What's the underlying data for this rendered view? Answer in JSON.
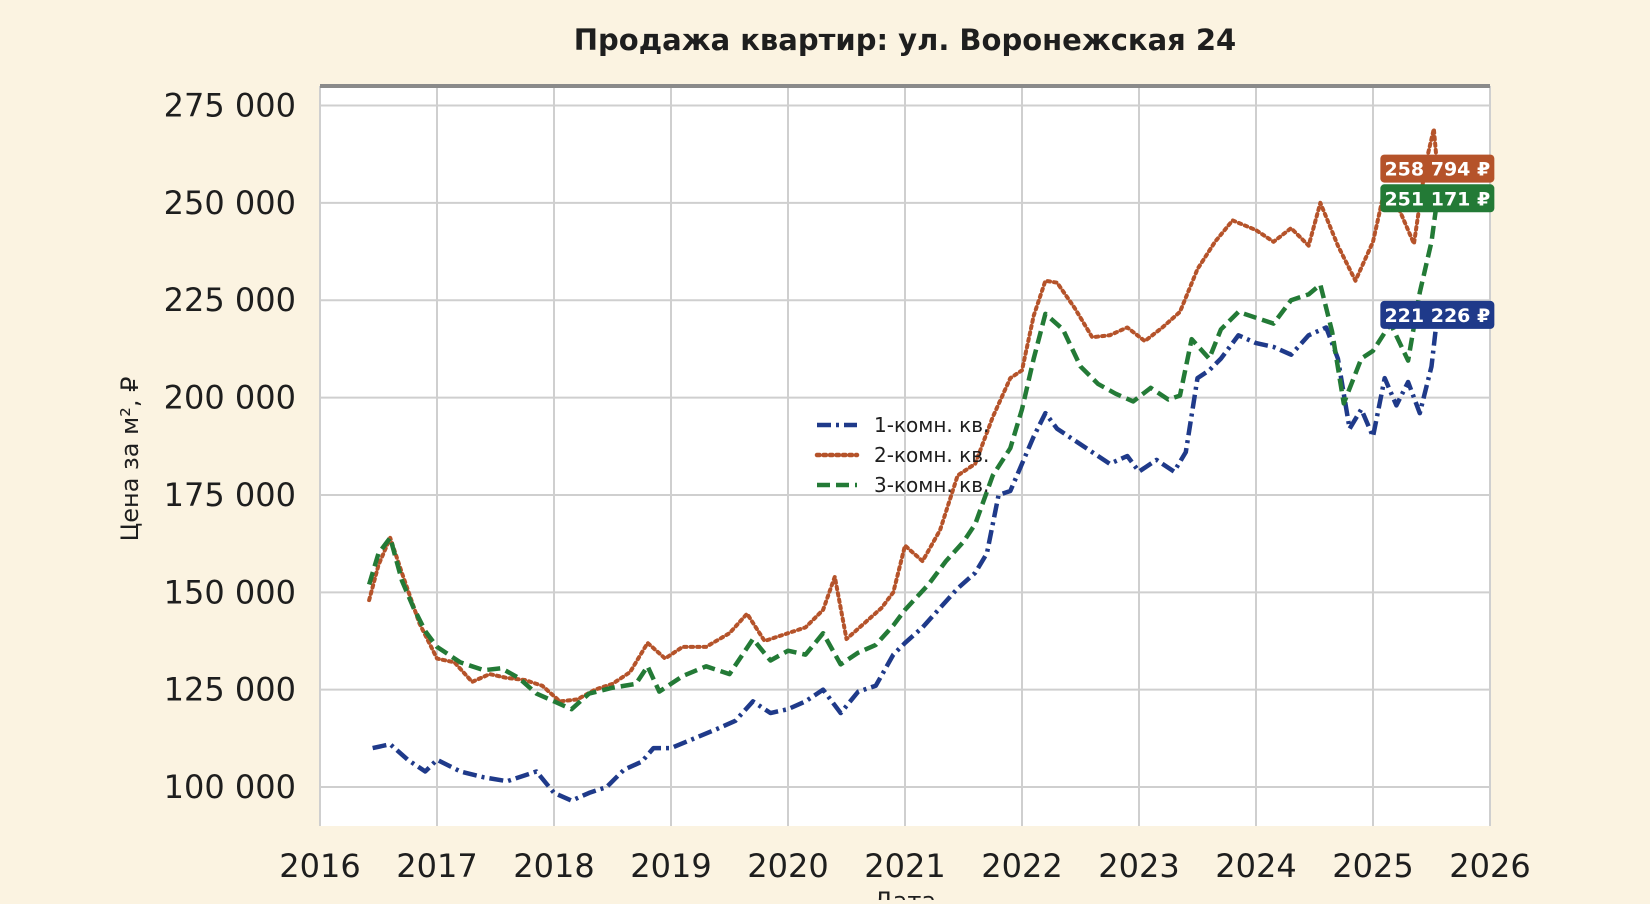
{
  "chart_data": {
    "type": "line",
    "title": "Продажа квартир: ул. Воронежская 24",
    "xlabel": "Дата",
    "ylabel": "Цена за м², ₽",
    "xlim": [
      2016,
      2026
    ],
    "ylim": [
      90000,
      280000
    ],
    "x_ticks": [
      2016,
      2017,
      2018,
      2019,
      2020,
      2021,
      2022,
      2023,
      2024,
      2025,
      2026
    ],
    "x_tick_labels": [
      "2016",
      "2017",
      "2018",
      "2019",
      "2020",
      "2021",
      "2022",
      "2023",
      "2024",
      "2025",
      "2026"
    ],
    "y_ticks": [
      100000,
      125000,
      150000,
      175000,
      200000,
      225000,
      250000,
      275000
    ],
    "y_tick_labels": [
      "100 000",
      "125 000",
      "150 000",
      "175 000",
      "200 000",
      "225 000",
      "250 000",
      "275 000"
    ],
    "grid": true,
    "legend_position": "center",
    "series": [
      {
        "name": "1-комн. кв.",
        "color": "#1f3a8a",
        "dash": "dashdot",
        "end_label": "221 226 ₽",
        "points": [
          [
            2016.45,
            110000
          ],
          [
            2016.6,
            111000
          ],
          [
            2016.75,
            107000
          ],
          [
            2016.9,
            104000
          ],
          [
            2017.0,
            107000
          ],
          [
            2017.2,
            104000
          ],
          [
            2017.4,
            102500
          ],
          [
            2017.6,
            101500
          ],
          [
            2017.85,
            104000
          ],
          [
            2018.0,
            98500
          ],
          [
            2018.15,
            96500
          ],
          [
            2018.3,
            98500
          ],
          [
            2018.45,
            100000
          ],
          [
            2018.6,
            104500
          ],
          [
            2018.75,
            106500
          ],
          [
            2018.85,
            110000
          ],
          [
            2019.0,
            110000
          ],
          [
            2019.2,
            112500
          ],
          [
            2019.4,
            115000
          ],
          [
            2019.55,
            117000
          ],
          [
            2019.7,
            122000
          ],
          [
            2019.85,
            119000
          ],
          [
            2020.0,
            120000
          ],
          [
            2020.15,
            122000
          ],
          [
            2020.3,
            125000
          ],
          [
            2020.45,
            119000
          ],
          [
            2020.6,
            124500
          ],
          [
            2020.75,
            126000
          ],
          [
            2020.9,
            134000
          ],
          [
            2021.0,
            137000
          ],
          [
            2021.15,
            141000
          ],
          [
            2021.3,
            146000
          ],
          [
            2021.45,
            151000
          ],
          [
            2021.6,
            155000
          ],
          [
            2021.7,
            160000
          ],
          [
            2021.8,
            175000
          ],
          [
            2021.9,
            176000
          ],
          [
            2022.0,
            183000
          ],
          [
            2022.1,
            190000
          ],
          [
            2022.2,
            196000
          ],
          [
            2022.3,
            192000
          ],
          [
            2022.45,
            189000
          ],
          [
            2022.6,
            186000
          ],
          [
            2022.75,
            183000
          ],
          [
            2022.9,
            185000
          ],
          [
            2023.0,
            181000
          ],
          [
            2023.15,
            184000
          ],
          [
            2023.3,
            181000
          ],
          [
            2023.4,
            186000
          ],
          [
            2023.5,
            205000
          ],
          [
            2023.6,
            207000
          ],
          [
            2023.7,
            210000
          ],
          [
            2023.85,
            216000
          ],
          [
            2024.0,
            214000
          ],
          [
            2024.15,
            213000
          ],
          [
            2024.3,
            211000
          ],
          [
            2024.45,
            216000
          ],
          [
            2024.6,
            218000
          ],
          [
            2024.7,
            210000
          ],
          [
            2024.8,
            192000
          ],
          [
            2024.9,
            197000
          ],
          [
            2025.0,
            190000
          ],
          [
            2025.1,
            205000
          ],
          [
            2025.2,
            198000
          ],
          [
            2025.3,
            204000
          ],
          [
            2025.4,
            196000
          ],
          [
            2025.5,
            208000
          ],
          [
            2025.55,
            221226
          ]
        ]
      },
      {
        "name": "2-комн. кв.",
        "color": "#b5532a",
        "dash": "dotted",
        "end_label": "258 794 ₽",
        "points": [
          [
            2016.42,
            148000
          ],
          [
            2016.5,
            157000
          ],
          [
            2016.6,
            164000
          ],
          [
            2016.7,
            155000
          ],
          [
            2016.85,
            142000
          ],
          [
            2017.0,
            133000
          ],
          [
            2017.15,
            132000
          ],
          [
            2017.3,
            127000
          ],
          [
            2017.45,
            129000
          ],
          [
            2017.6,
            128000
          ],
          [
            2017.75,
            127500
          ],
          [
            2017.9,
            126000
          ],
          [
            2018.05,
            122000
          ],
          [
            2018.2,
            122500
          ],
          [
            2018.35,
            125000
          ],
          [
            2018.5,
            126500
          ],
          [
            2018.65,
            129500
          ],
          [
            2018.8,
            137000
          ],
          [
            2018.95,
            133000
          ],
          [
            2019.1,
            136000
          ],
          [
            2019.3,
            136000
          ],
          [
            2019.5,
            139500
          ],
          [
            2019.65,
            144500
          ],
          [
            2019.8,
            137500
          ],
          [
            2020.0,
            139500
          ],
          [
            2020.15,
            141000
          ],
          [
            2020.3,
            145500
          ],
          [
            2020.4,
            154000
          ],
          [
            2020.5,
            138000
          ],
          [
            2020.65,
            142000
          ],
          [
            2020.8,
            146000
          ],
          [
            2020.9,
            150000
          ],
          [
            2021.0,
            162000
          ],
          [
            2021.15,
            158000
          ],
          [
            2021.3,
            166000
          ],
          [
            2021.45,
            180000
          ],
          [
            2021.6,
            183000
          ],
          [
            2021.75,
            195000
          ],
          [
            2021.9,
            205000
          ],
          [
            2022.0,
            207000
          ],
          [
            2022.1,
            221000
          ],
          [
            2022.2,
            230000
          ],
          [
            2022.3,
            229500
          ],
          [
            2022.45,
            223000
          ],
          [
            2022.6,
            215500
          ],
          [
            2022.75,
            216000
          ],
          [
            2022.9,
            218000
          ],
          [
            2023.05,
            214500
          ],
          [
            2023.2,
            218000
          ],
          [
            2023.35,
            222000
          ],
          [
            2023.5,
            233000
          ],
          [
            2023.65,
            240000
          ],
          [
            2023.8,
            245500
          ],
          [
            2024.0,
            243000
          ],
          [
            2024.15,
            240000
          ],
          [
            2024.3,
            243500
          ],
          [
            2024.45,
            239000
          ],
          [
            2024.55,
            250000
          ],
          [
            2024.7,
            239000
          ],
          [
            2024.85,
            230000
          ],
          [
            2025.0,
            240000
          ],
          [
            2025.1,
            253500
          ],
          [
            2025.2,
            250000
          ],
          [
            2025.35,
            239500
          ],
          [
            2025.45,
            260000
          ],
          [
            2025.52,
            269000
          ],
          [
            2025.55,
            258794
          ]
        ]
      },
      {
        "name": "3-комн. кв.",
        "color": "#237a36",
        "dash": "dashed",
        "end_label": "251 171 ₽",
        "points": [
          [
            2016.42,
            152000
          ],
          [
            2016.5,
            160000
          ],
          [
            2016.6,
            164000
          ],
          [
            2016.7,
            153000
          ],
          [
            2016.8,
            146000
          ],
          [
            2016.9,
            140000
          ],
          [
            2017.0,
            136000
          ],
          [
            2017.2,
            132000
          ],
          [
            2017.4,
            130000
          ],
          [
            2017.55,
            130500
          ],
          [
            2017.7,
            128000
          ],
          [
            2017.85,
            124000
          ],
          [
            2018.0,
            122000
          ],
          [
            2018.15,
            120000
          ],
          [
            2018.3,
            124000
          ],
          [
            2018.5,
            125500
          ],
          [
            2018.7,
            126500
          ],
          [
            2018.8,
            131000
          ],
          [
            2018.9,
            124500
          ],
          [
            2019.1,
            128500
          ],
          [
            2019.3,
            131000
          ],
          [
            2019.5,
            129000
          ],
          [
            2019.7,
            138000
          ],
          [
            2019.85,
            132500
          ],
          [
            2020.0,
            135000
          ],
          [
            2020.15,
            134000
          ],
          [
            2020.3,
            139500
          ],
          [
            2020.45,
            131500
          ],
          [
            2020.6,
            134500
          ],
          [
            2020.75,
            136500
          ],
          [
            2020.9,
            141500
          ],
          [
            2021.0,
            145500
          ],
          [
            2021.2,
            152000
          ],
          [
            2021.35,
            158000
          ],
          [
            2021.5,
            163000
          ],
          [
            2021.6,
            167500
          ],
          [
            2021.75,
            180000
          ],
          [
            2021.9,
            187000
          ],
          [
            2022.0,
            197000
          ],
          [
            2022.1,
            210000
          ],
          [
            2022.2,
            221500
          ],
          [
            2022.35,
            217500
          ],
          [
            2022.5,
            208000
          ],
          [
            2022.65,
            203500
          ],
          [
            2022.8,
            201000
          ],
          [
            2022.95,
            199000
          ],
          [
            2023.1,
            202500
          ],
          [
            2023.25,
            199500
          ],
          [
            2023.35,
            200500
          ],
          [
            2023.45,
            215000
          ],
          [
            2023.6,
            210000
          ],
          [
            2023.7,
            217500
          ],
          [
            2023.85,
            222000
          ],
          [
            2024.0,
            220500
          ],
          [
            2024.15,
            219000
          ],
          [
            2024.3,
            225000
          ],
          [
            2024.45,
            226500
          ],
          [
            2024.55,
            229000
          ],
          [
            2024.65,
            217000
          ],
          [
            2024.75,
            198500
          ],
          [
            2024.9,
            210000
          ],
          [
            2025.0,
            212000
          ],
          [
            2025.15,
            219000
          ],
          [
            2025.3,
            209500
          ],
          [
            2025.4,
            227000
          ],
          [
            2025.5,
            240000
          ],
          [
            2025.55,
            251171
          ]
        ]
      }
    ]
  }
}
